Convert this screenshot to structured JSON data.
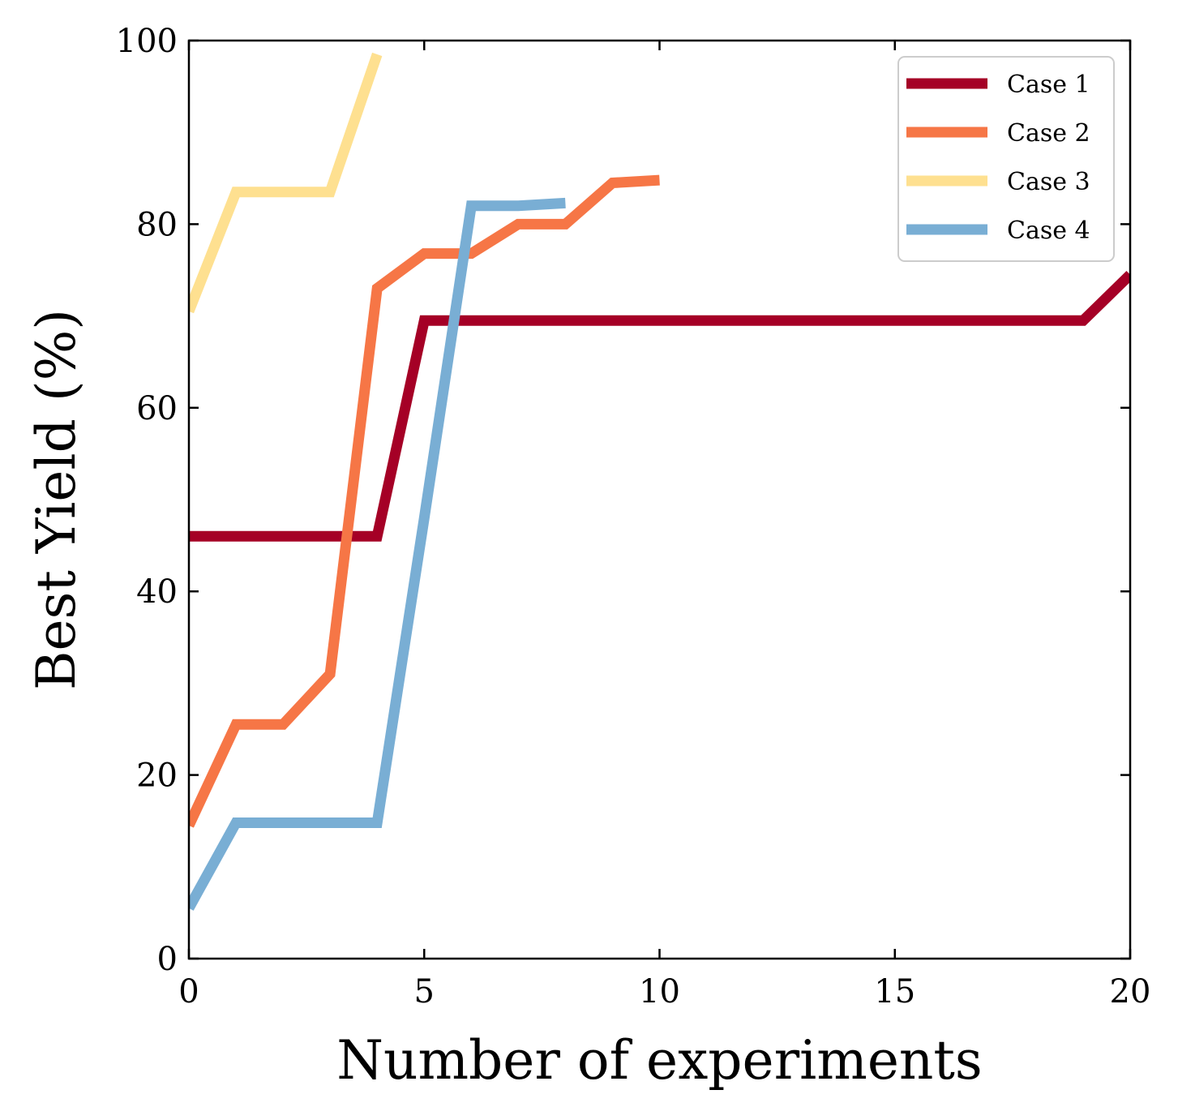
{
  "chart_data": {
    "type": "line",
    "title": "",
    "xlabel": "Number of experiments",
    "ylabel": "Best Yield (%)",
    "xlim": [
      0,
      20
    ],
    "ylim": [
      0,
      100
    ],
    "xticks": [
      0,
      5,
      10,
      15,
      20
    ],
    "yticks": [
      0,
      20,
      40,
      60,
      80,
      100
    ],
    "grid": false,
    "legend_position": "top-right",
    "series": [
      {
        "name": "Case 1",
        "color": "#a50026",
        "x": [
          0,
          1,
          2,
          3,
          4,
          5,
          6,
          7,
          8,
          9,
          10,
          11,
          12,
          13,
          14,
          15,
          16,
          17,
          18,
          19,
          20
        ],
        "y": [
          46,
          46,
          46,
          46,
          46,
          69.5,
          69.5,
          69.5,
          69.5,
          69.5,
          69.5,
          69.5,
          69.5,
          69.5,
          69.5,
          69.5,
          69.5,
          69.5,
          69.5,
          69.5,
          74.5
        ]
      },
      {
        "name": "Case 2",
        "color": "#f67646",
        "x": [
          0,
          1,
          2,
          3,
          4,
          5,
          6,
          7,
          8,
          9,
          10
        ],
        "y": [
          14.5,
          25.5,
          25.5,
          31,
          73,
          76.8,
          76.8,
          80,
          80,
          84.5,
          84.8
        ]
      },
      {
        "name": "Case 3",
        "color": "#fee090",
        "x": [
          0,
          1,
          2,
          3,
          4
        ],
        "y": [
          70.5,
          83.5,
          83.5,
          83.5,
          98.5
        ]
      },
      {
        "name": "Case 4",
        "color": "#79aed4",
        "x": [
          0,
          1,
          2,
          3,
          4,
          5,
          6,
          7,
          8
        ],
        "y": [
          5.5,
          14.8,
          14.8,
          14.8,
          14.8,
          48,
          82,
          82,
          82.3
        ]
      }
    ]
  }
}
